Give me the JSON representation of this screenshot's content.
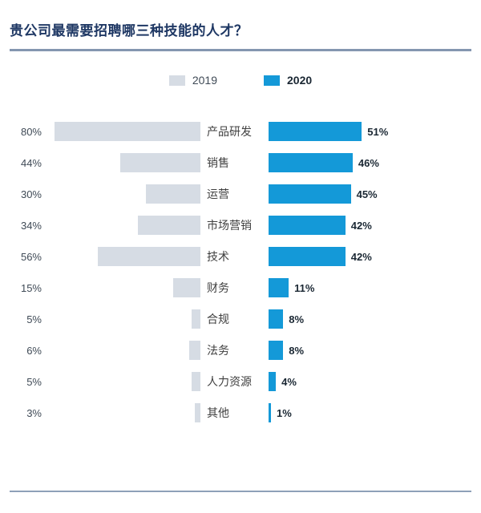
{
  "title": "贵公司最需要招聘哪三种技能的人才？",
  "legend": [
    {
      "label": "2019",
      "color": "#d6dce4"
    },
    {
      "label": "2020",
      "color": "#1499d8"
    }
  ],
  "colors": {
    "title": "#1f3864",
    "rule": "#8496b0",
    "bar_2019": "#d6dce4",
    "bar_2020": "#1499d8"
  },
  "chart_data": {
    "type": "bar",
    "orientation": "horizontal-diverging",
    "title": "贵公司最需要招聘哪三种技能的人才？",
    "categories": [
      "产品研发",
      "销售",
      "运营",
      "市场营销",
      "技术",
      "财务",
      "合规",
      "法务",
      "人力资源",
      "其他"
    ],
    "series": [
      {
        "name": "2019",
        "values": [
          80,
          44,
          30,
          34,
          56,
          15,
          5,
          6,
          5,
          3
        ]
      },
      {
        "name": "2020",
        "values": [
          51,
          46,
          45,
          42,
          42,
          11,
          8,
          8,
          4,
          1
        ]
      }
    ],
    "value_suffix": "%",
    "xlim_each_side": [
      0,
      80
    ],
    "grid": false,
    "legend_position": "top-center"
  }
}
